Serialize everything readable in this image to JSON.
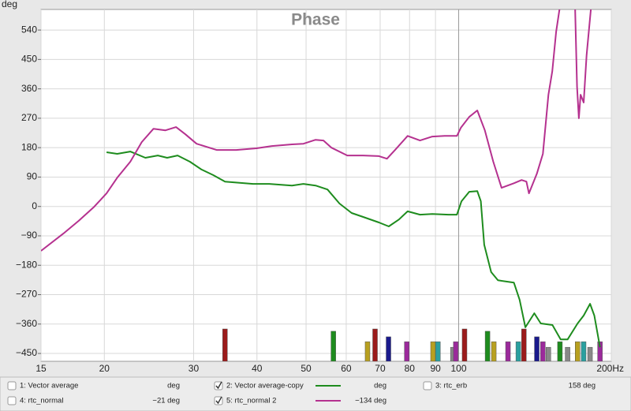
{
  "chart_data": {
    "type": "line",
    "title": "Phase",
    "y_unit": "deg",
    "xscale": "log",
    "xlim": [
      15,
      200
    ],
    "ylim": [
      -474,
      603
    ],
    "xticks": [
      15,
      20,
      30,
      40,
      50,
      60,
      70,
      80,
      90,
      100,
      {
        "value": 200,
        "label": "200Hz"
      }
    ],
    "yticks": [
      {
        "value": -450,
        "label": "−450"
      },
      {
        "value": -360,
        "label": "−360"
      },
      {
        "value": -270,
        "label": "−270"
      },
      {
        "value": -180,
        "label": "−180"
      },
      {
        "value": -90,
        "label": "−90"
      },
      0,
      90,
      180,
      270,
      360,
      450,
      540
    ],
    "grid": true,
    "series": [
      {
        "color": "#1e8c1e",
        "x": [
          20.2,
          21.2,
          22.5,
          24.1,
          25.5,
          26.6,
          27.9,
          29.5,
          31.1,
          32.8,
          34.6,
          39.3,
          42.3,
          46.9,
          49.4,
          52.2,
          55.1,
          58.2,
          61.5,
          64.8,
          69.6,
          72.8,
          76.2,
          79.3,
          83.9,
          88.7,
          95.5,
          99.2,
          101.3,
          104.9,
          108.8,
          110.6,
          112.3,
          115.9,
          119.5,
          128.5,
          131.9,
          135.4,
          141,
          145.2,
          153.1,
          158.9,
          164,
          171.6,
          176.4,
          181.6,
          185.2,
          190
        ],
        "values": [
          166,
          161,
          168,
          149,
          156,
          149,
          156,
          137,
          113,
          96,
          76,
          69,
          69,
          64,
          69,
          64,
          52,
          9,
          -20,
          -32,
          -49,
          -61,
          -40,
          -15,
          -25,
          -23,
          -25,
          -25,
          16,
          45,
          47,
          16,
          -117,
          -201,
          -226,
          -233,
          -286,
          -370,
          -327,
          -358,
          -363,
          -407,
          -407,
          -358,
          -334,
          -298,
          -334,
          -431
        ]
      },
      {
        "color": "#b5318f",
        "x": [
          15,
          16.6,
          17.8,
          19.1,
          20.2,
          21.2,
          22.5,
          23.7,
          25,
          26.4,
          27.7,
          28.9,
          30.4,
          33.3,
          36.4,
          39.9,
          42.8,
          46.9,
          49.4,
          52.2,
          54.1,
          56.1,
          60.3,
          64.8,
          69.6,
          72.2,
          74.9,
          79.3,
          83.9,
          88.7,
          93.8,
          99.2,
          101,
          104.9,
          108.8,
          112.6,
          117,
          121.5,
          128.5,
          133.1,
          136,
          137.6,
          142.6,
          146.6,
          150.3,
          153,
          155.7,
          160.8,
          169.4,
          171.2,
          172.6,
          174,
          176.4,
          178.8,
          182.3,
          186
        ],
        "values": [
          -136,
          -83,
          -44,
          -1,
          40,
          88,
          137,
          197,
          238,
          233,
          243,
          221,
          192,
          173,
          173,
          178,
          185,
          190,
          192,
          204,
          202,
          180,
          156,
          156,
          154,
          146,
          173,
          216,
          202,
          214,
          216,
          216,
          241,
          274,
          294,
          233,
          137,
          57,
          71,
          81,
          76,
          40,
          100,
          161,
          342,
          414,
          535,
          680,
          650,
          366,
          270,
          342,
          318,
          463,
          603,
          700
        ]
      }
    ],
    "markers": [
      {
        "x": 34.6,
        "top": -375,
        "color": "#9b1b1b"
      },
      {
        "x": 56.6,
        "top": -382,
        "color": "#1e8c1e"
      },
      {
        "x": 66.1,
        "top": -414,
        "color": "#b8a020"
      },
      {
        "x": 68.4,
        "top": -375,
        "color": "#9b1b1b"
      },
      {
        "x": 72.7,
        "top": -399,
        "color": "#1a1a8c"
      },
      {
        "x": 79,
        "top": -414,
        "color": "#9b2a9b"
      },
      {
        "x": 89,
        "top": -414,
        "color": "#b8a020"
      },
      {
        "x": 91,
        "top": -414,
        "color": "#2aa0a0"
      },
      {
        "x": 97.4,
        "top": -431,
        "color": "#888888"
      },
      {
        "x": 98.7,
        "top": -414,
        "color": "#9b2a9b"
      },
      {
        "x": 102.7,
        "top": -375,
        "color": "#9b1b1b"
      },
      {
        "x": 114,
        "top": -382,
        "color": "#1e8c1e"
      },
      {
        "x": 117.3,
        "top": -414,
        "color": "#b8a020"
      },
      {
        "x": 125.1,
        "top": -414,
        "color": "#9b2a9b"
      },
      {
        "x": 131.1,
        "top": -414,
        "color": "#2aa0a0"
      },
      {
        "x": 134.5,
        "top": -375,
        "color": "#9b1b1b"
      },
      {
        "x": 142.6,
        "top": -399,
        "color": "#1a1a8c"
      },
      {
        "x": 146.6,
        "top": -414,
        "color": "#9b2a9b"
      },
      {
        "x": 150.3,
        "top": -431,
        "color": "#888888"
      },
      {
        "x": 158.4,
        "top": -414,
        "color": "#1e8c1e"
      },
      {
        "x": 164,
        "top": -431,
        "color": "#888888"
      },
      {
        "x": 171.6,
        "top": -414,
        "color": "#b8a020"
      },
      {
        "x": 176.4,
        "top": -414,
        "color": "#2aa0a0"
      },
      {
        "x": 181.6,
        "top": -431,
        "color": "#888888"
      },
      {
        "x": 190,
        "top": -414,
        "color": "#9b2a9b"
      }
    ],
    "legend": [
      {
        "name": "1: Vector average",
        "readout": "deg",
        "color": "#d03030",
        "checked": false
      },
      {
        "name": "2: Vector average-copy",
        "readout": "deg",
        "color": "#1e8c1e",
        "checked": true
      },
      {
        "name": "3: rtc_erb",
        "readout": "158 deg",
        "color": "#1e9c3e",
        "checked": false
      },
      {
        "name": "4: rtc_normal",
        "readout": "−21 deg",
        "color": "#9b2ab0",
        "checked": false
      },
      {
        "name": "5: rtc_normal 2",
        "readout": "−134 deg",
        "color": "#b5318f",
        "checked": true
      }
    ]
  }
}
